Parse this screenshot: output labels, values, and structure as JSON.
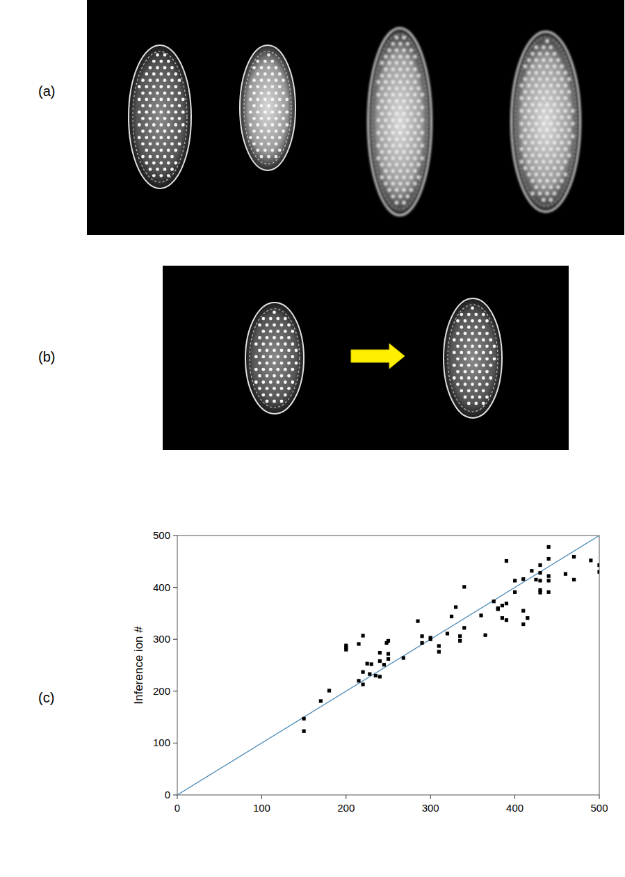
{
  "panels": {
    "a": {
      "label": "(a)"
    },
    "b": {
      "label": "(b)"
    },
    "c": {
      "label": "(c)"
    }
  },
  "chart_data": {
    "type": "scatter",
    "y_label": "Inference ion #",
    "xlim": [
      0,
      500
    ],
    "ylim": [
      0,
      500
    ],
    "xticks": [
      0,
      100,
      200,
      300,
      400,
      500
    ],
    "yticks": [
      0,
      100,
      200,
      300,
      400,
      500
    ],
    "grid": false,
    "series": [
      {
        "type": "scatter",
        "color": "#000000",
        "marker": "square",
        "x": [
          150,
          150,
          170,
          180,
          200,
          200,
          200,
          215,
          215,
          220,
          220,
          220,
          225,
          228,
          230,
          235,
          240,
          240,
          240,
          245,
          248,
          250,
          250,
          250,
          268,
          285,
          290,
          290,
          300,
          300,
          310,
          310,
          320,
          325,
          330,
          335,
          335,
          340,
          340,
          360,
          365,
          375,
          380,
          380,
          385,
          385,
          390,
          390,
          390,
          400,
          400,
          410,
          410,
          410,
          415,
          420,
          425,
          430,
          430,
          430,
          430,
          430,
          440,
          440,
          440,
          440,
          440,
          460,
          470,
          470,
          490,
          500,
          500
        ],
        "values": [
          147,
          123,
          181,
          201,
          288,
          284,
          280,
          291,
          220,
          307,
          213,
          237,
          253,
          233,
          252,
          230,
          274,
          258,
          228,
          251,
          293,
          297,
          272,
          262,
          264,
          335,
          306,
          293,
          303,
          300,
          287,
          276,
          311,
          344,
          362,
          306,
          297,
          401,
          322,
          346,
          308,
          373,
          360,
          358,
          341,
          365,
          451,
          369,
          337,
          413,
          391,
          416,
          355,
          329,
          341,
          432,
          415,
          443,
          428,
          413,
          395,
          390,
          478,
          455,
          422,
          413,
          391,
          426,
          459,
          415,
          452,
          443,
          430
        ]
      },
      {
        "type": "line",
        "color": "#4a8ab8",
        "line_style": "solid",
        "x": [
          0,
          500
        ],
        "values": [
          0,
          500
        ]
      }
    ]
  }
}
